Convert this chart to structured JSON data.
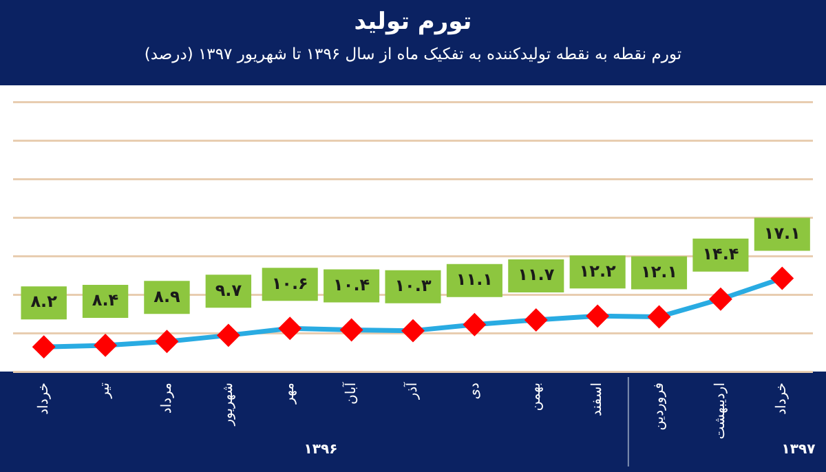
{
  "chart_data": {
    "type": "line",
    "title": "تورم تولید",
    "subtitle": "تورم نقطه به نقطه تولیدکننده به تفکیک ماه  از سال ۱۳۹۶ تا شهریور ۱۳۹۷ (درصد)",
    "categories": [
      "خرداد",
      "تیر",
      "مرداد",
      "شهریور",
      "مهر",
      "آبان",
      "آذر",
      "دی",
      "بهمن",
      "اسفند",
      "فروردین",
      "اردیبهشت",
      "خرداد"
    ],
    "series": [
      {
        "color": "#29abe2",
        "values": [
          8.2,
          8.4,
          8.9,
          9.7,
          10.6,
          10.4,
          10.3,
          11.1,
          11.7,
          12.2,
          12.1,
          14.4,
          17.1
        ],
        "value_labels": [
          "۸.۲",
          "۸.۴",
          "۸.۹",
          "۹.۷",
          "۱۰.۶",
          "۱۰.۴",
          "۱۰.۳",
          "۱۱.۱",
          "۱۱.۷",
          "۱۲.۲",
          "۱۲.۱",
          "۱۴.۴",
          "۱۷.۱"
        ]
      }
    ],
    "marker": "diamond",
    "grid": "y",
    "legend": false,
    "tick_labels": "x",
    "ylim": [
      5,
      40
    ],
    "yticks": [
      {
        "value": 5,
        "label": null
      },
      {
        "value": 10,
        "label": null
      },
      {
        "value": 15,
        "label": null
      },
      {
        "value": 20,
        "label": null
      },
      {
        "value": 25,
        "label": null
      },
      {
        "value": 30,
        "label": null
      },
      {
        "value": 35,
        "label": null
      },
      {
        "value": 40,
        "label": null
      }
    ],
    "annotations": [
      "۱۳۹۶",
      "۱۳۹۷"
    ]
  }
}
